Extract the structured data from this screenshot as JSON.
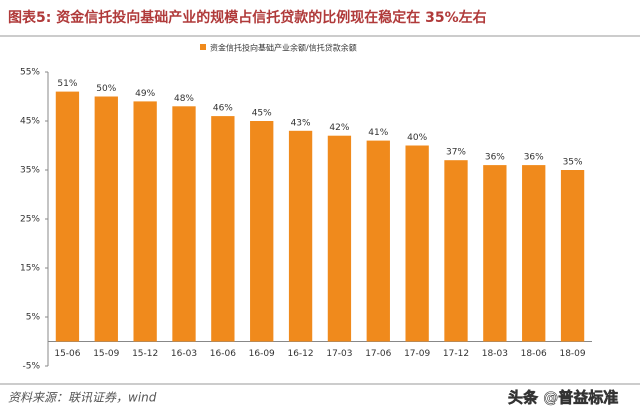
{
  "chart_data": {
    "type": "bar",
    "title": "图表5:   资金信托投向基础产业的规模占信托贷款的比例现在稳定在 35%左右",
    "legend": "资金信托投向基础产业余额/信托贷款余额",
    "source": "资料来源：联讯证券，wind",
    "watermark": "头条 @普益标准",
    "categories": [
      "15-06",
      "15-09",
      "15-12",
      "16-03",
      "16-06",
      "16-09",
      "16-12",
      "17-03",
      "17-06",
      "17-09",
      "17-12",
      "18-03",
      "18-06",
      "18-09"
    ],
    "values": [
      51,
      50,
      49,
      48,
      46,
      45,
      43,
      42,
      41,
      40,
      37,
      36,
      36,
      35
    ],
    "value_labels": [
      "51%",
      "50%",
      "49%",
      "48%",
      "46%",
      "45%",
      "43%",
      "42%",
      "41%",
      "40%",
      "37%",
      "36%",
      "36%",
      "35%"
    ],
    "color": "#f08a1c",
    "ylim": [
      -5,
      55
    ],
    "yticks": [
      {
        "value": -5,
        "label": "-5%"
      },
      {
        "value": 5,
        "label": "5%"
      },
      {
        "value": 15,
        "label": "15%"
      },
      {
        "value": 25,
        "label": "25%"
      },
      {
        "value": 35,
        "label": "35%"
      },
      {
        "value": 45,
        "label": "45%"
      },
      {
        "value": 55,
        "label": "55%"
      }
    ]
  }
}
